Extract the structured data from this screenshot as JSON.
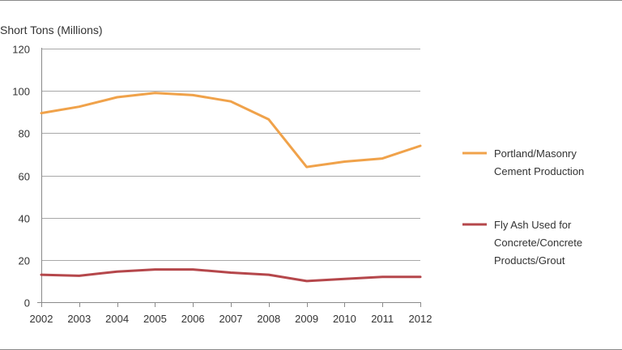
{
  "chart_data": {
    "type": "line",
    "ylabel": "Short Tons (Millions)",
    "xlabel": "",
    "title": "",
    "categories": [
      "2002",
      "2003",
      "2004",
      "2005",
      "2006",
      "2007",
      "2008",
      "2009",
      "2010",
      "2011",
      "2012"
    ],
    "ylim": [
      0,
      120
    ],
    "yticks": [
      0,
      20,
      40,
      60,
      80,
      100,
      120
    ],
    "grid": "horizontal",
    "legend_position": "right",
    "series": [
      {
        "name": "Portland/Masonry Cement Production",
        "legend_lines": [
          "Portland/Masonry",
          "Cement Production"
        ],
        "color": "#f0a24a",
        "values": [
          89.5,
          92.5,
          97,
          99,
          98,
          95,
          86.5,
          64,
          66.5,
          68,
          74
        ]
      },
      {
        "name": "Fly Ash Used for Concrete/Concrete Products/Grout",
        "legend_lines": [
          "Fly Ash Used for",
          "Concrete/Concrete",
          "Products/Grout"
        ],
        "color": "#b5474b",
        "values": [
          13,
          12.5,
          14.5,
          15.5,
          15.5,
          14,
          13,
          10,
          11,
          12,
          12
        ]
      }
    ]
  }
}
